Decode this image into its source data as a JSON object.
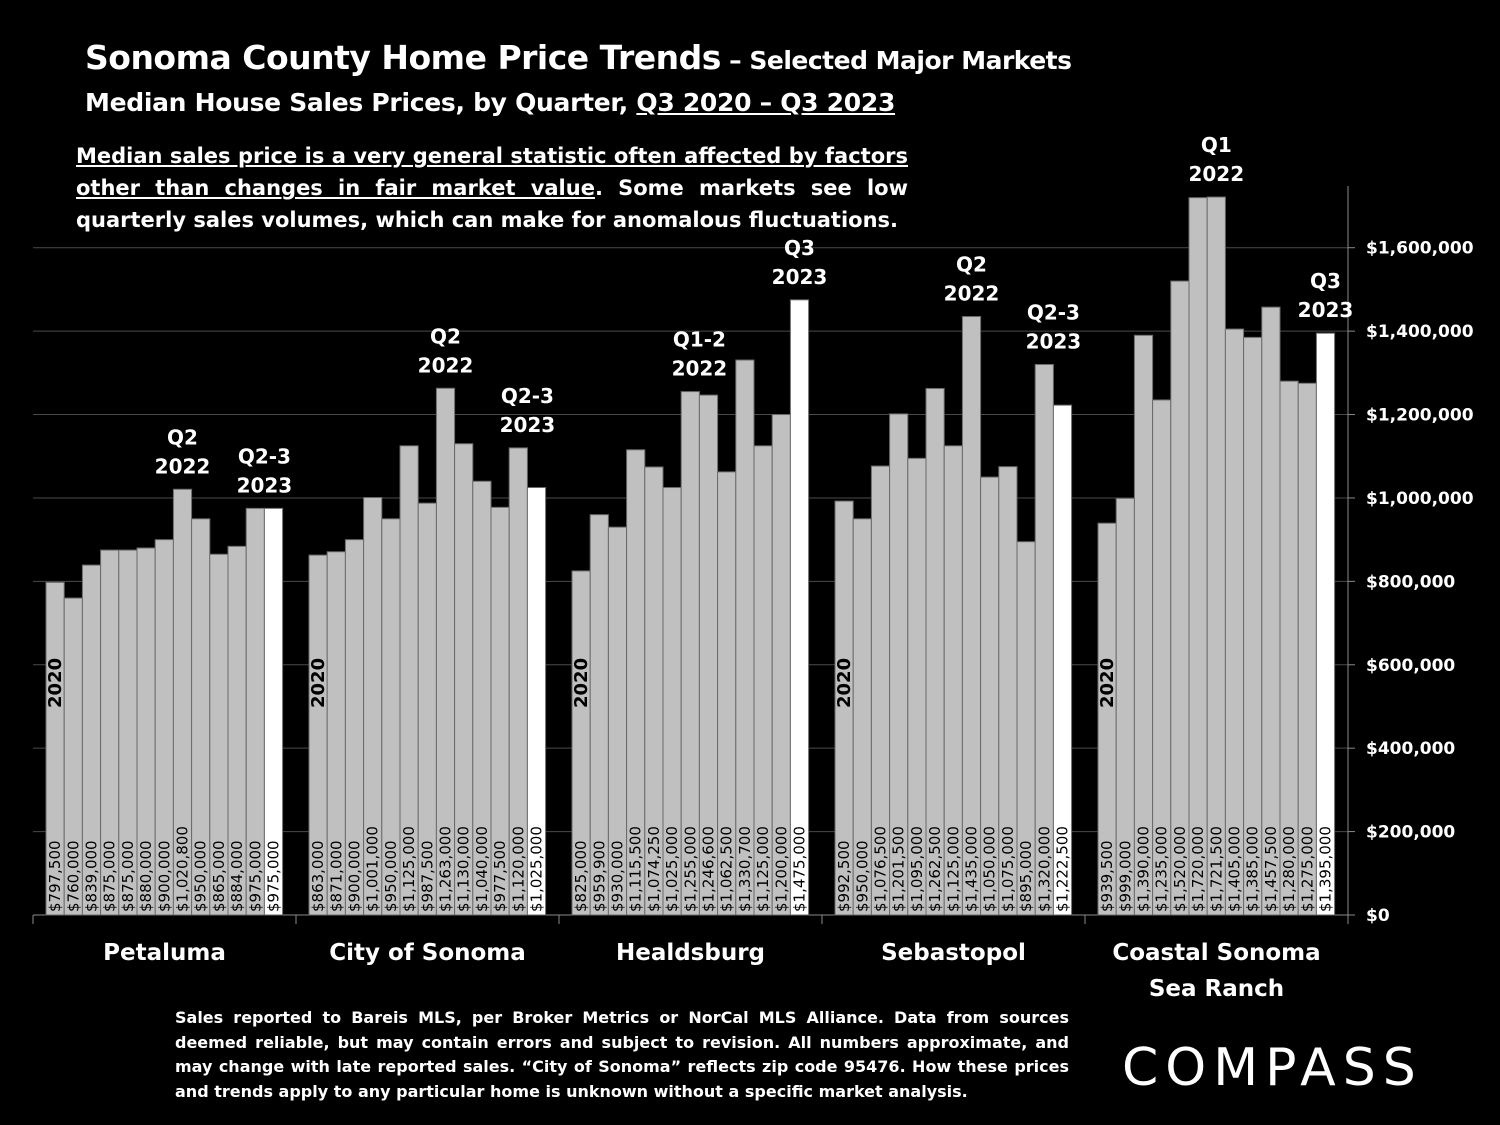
{
  "title": {
    "main": "Sonoma County Home Price Trends",
    "sub": " – Selected Major Markets"
  },
  "subtitle": {
    "text": "Median House Sales Prices, by Quarter, ",
    "range": "Q3 2020 – Q3 2023"
  },
  "note": {
    "underlined": "Median sales price is a very general statistic often affected by factors other than changes in fair market value",
    "rest": ". Some markets see low quarterly sales volumes, which can make for anomalous fluctuations."
  },
  "footer": "Sales reported to Bareis MLS, per Broker Metrics or NorCal MLS Alliance. Data from sources deemed reliable, but may contain errors and subject to revision. All numbers approximate, and may change with late reported sales. “City of Sonoma” reflects zip code 95476. How these prices and trends apply to any particular home is unknown without a specific market analysis.",
  "logo": "COMPASS",
  "colors": {
    "bar": "#c0c0c0",
    "bar_latest": "#ffffff",
    "background": "#000000",
    "text": "#ffffff"
  },
  "chart_data": {
    "type": "bar",
    "ylim": [
      0,
      1750000
    ],
    "y_ticks": [
      0,
      200000,
      400000,
      600000,
      800000,
      1000000,
      1200000,
      1400000,
      1600000
    ],
    "y_tick_labels": [
      "$0",
      "$200,000",
      "$400,000",
      "$600,000",
      "$800,000",
      "$1,000,000",
      "$1,200,000",
      "$1,400,000",
      "$1,600,000"
    ],
    "y_axis_side": "right",
    "grid": true,
    "first_bar_label": "2020",
    "groups": [
      {
        "name": "Petaluma",
        "values": [
          797500,
          760000,
          839000,
          875000,
          875000,
          880000,
          900000,
          1020800,
          950000,
          865000,
          884000,
          975000,
          975000
        ],
        "labels": [
          "$797,500",
          "$760,000",
          "$839,000",
          "$875,000",
          "$875,000",
          "$880,000",
          "$900,000",
          "$1,020,800",
          "$950,000",
          "$865,000",
          "$884,000",
          "$975,000",
          "$975,000"
        ],
        "annotations": [
          {
            "bar": 7,
            "lines": [
              "Q2",
              "2022"
            ]
          },
          {
            "bar": 11.5,
            "lines": [
              "Q2-3",
              "2023"
            ]
          }
        ]
      },
      {
        "name": "City of Sonoma",
        "values": [
          863000,
          871000,
          900000,
          1001000,
          950000,
          1125000,
          987500,
          1263000,
          1130000,
          1040000,
          977500,
          1120000,
          1025000
        ],
        "labels": [
          "$863,000",
          "$871,000",
          "$900,000",
          "$1,001,000",
          "$950,000",
          "$1,125,000",
          "$987,500",
          "$1,263,000",
          "$1,130,000",
          "$1,040,000",
          "$977,500",
          "$1,120,000",
          "$1,025,000"
        ],
        "annotations": [
          {
            "bar": 7,
            "lines": [
              "Q2",
              "2022"
            ]
          },
          {
            "bar": 11.5,
            "lines": [
              "Q2-3",
              "2023"
            ]
          }
        ]
      },
      {
        "name": "Healdsburg",
        "values": [
          825000,
          959900,
          930000,
          1115500,
          1074250,
          1025000,
          1255000,
          1246600,
          1062500,
          1330700,
          1125000,
          1200000,
          1475000
        ],
        "labels": [
          "$825,000",
          "$959,900",
          "$930,000",
          "$1,115,500",
          "$1,074,250",
          "$1,025,000",
          "$1,255,000",
          "$1,246,600",
          "$1,062,500",
          "$1,330,700",
          "$1,125,000",
          "$1,200,000",
          "$1,475,000"
        ],
        "annotations": [
          {
            "bar": 6.5,
            "lines": [
              "Q1-2",
              "2022"
            ]
          },
          {
            "bar": 12,
            "lines": [
              "Q3",
              "2023"
            ]
          }
        ]
      },
      {
        "name": "Sebastopol",
        "values": [
          992500,
          950000,
          1076500,
          1201500,
          1095000,
          1262500,
          1125000,
          1435000,
          1050000,
          1075000,
          895000,
          1320000,
          1222500
        ],
        "labels": [
          "$992,500",
          "$950,000",
          "$1,076,500",
          "$1,201,500",
          "$1,095,000",
          "$1,262,500",
          "$1,125,000",
          "$1,435,000",
          "$1,050,000",
          "$1,075,000",
          "$895,000",
          "$1,320,000",
          "$1,222,500"
        ],
        "annotations": [
          {
            "bar": 7,
            "lines": [
              "Q2",
              "2022"
            ]
          },
          {
            "bar": 11.5,
            "lines": [
              "Q2-3",
              "2023"
            ]
          }
        ]
      },
      {
        "name": "Coastal Sonoma\nSea Ranch",
        "values": [
          939500,
          999000,
          1390000,
          1235000,
          1520000,
          1720000,
          1721500,
          1405000,
          1385000,
          1457500,
          1280000,
          1275000,
          1395000
        ],
        "labels": [
          "$939,500",
          "$999,000",
          "$1,390,000",
          "$1,235,000",
          "$1,520,000",
          "$1,720,000",
          "$1,721,500",
          "$1,405,000",
          "$1,385,000",
          "$1,457,500",
          "$1,280,000",
          "$1,275,000",
          "$1,395,000"
        ],
        "annotations": [
          {
            "bar": 6,
            "lines": [
              "Q1",
              "2022"
            ]
          },
          {
            "bar": 12,
            "lines": [
              "Q3",
              "2023"
            ]
          }
        ]
      }
    ]
  }
}
